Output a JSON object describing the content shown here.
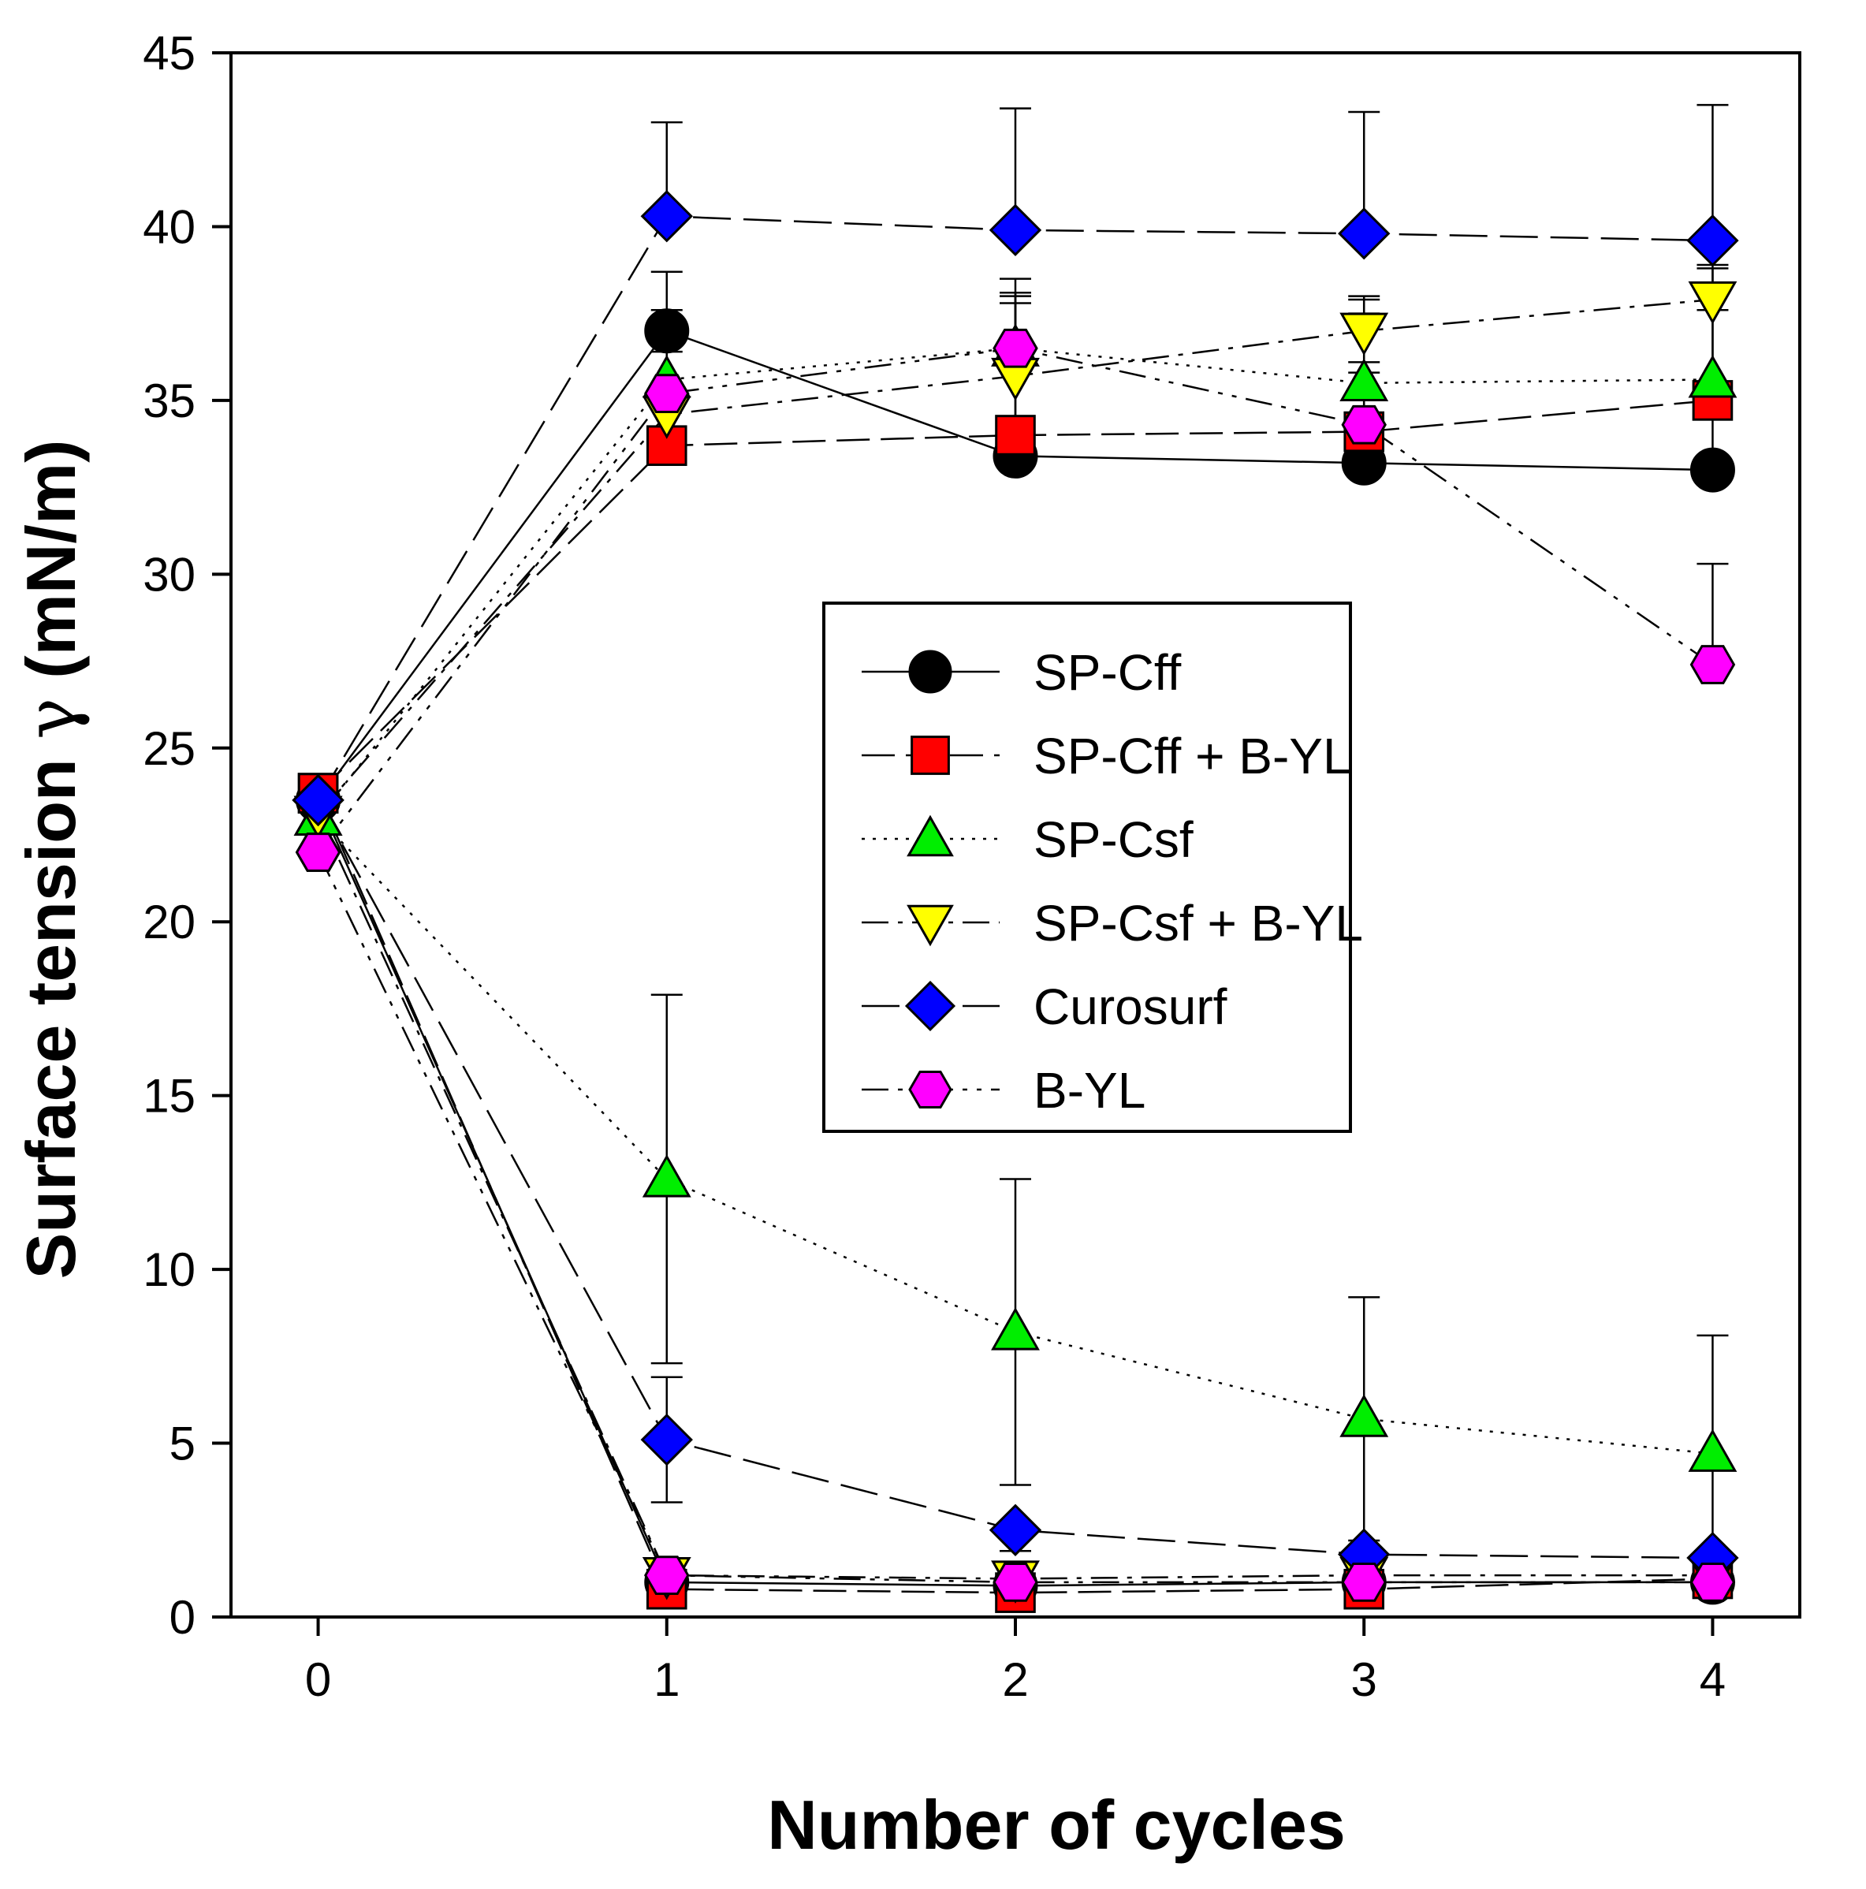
{
  "chart_data": {
    "type": "line",
    "title": "",
    "xlabel": "Number of cycles",
    "ylabel_main": "Surface tension ",
    "ylabel_symbol": "γ",
    "ylabel_unit": " (mN/m)",
    "xlim": [
      -0.25,
      4.25
    ],
    "ylim": [
      0,
      45
    ],
    "xticks": [
      0,
      1,
      2,
      3,
      4
    ],
    "yticks": [
      0,
      5,
      10,
      15,
      20,
      25,
      30,
      35,
      40,
      45
    ],
    "x": [
      0,
      1,
      2,
      3,
      4
    ],
    "legend_position": "center-right",
    "series": [
      {
        "name": "SP-Cff",
        "marker": "circle",
        "color": "#000000",
        "dash": "solid",
        "max": [
          23.5,
          37.0,
          33.4,
          33.2,
          33.0
        ],
        "max_err": [
          0.4,
          1.7,
          3.2,
          2.9,
          1.8
        ],
        "min": [
          23.5,
          1.0,
          0.9,
          1.0,
          1.0
        ],
        "min_err": [
          0.4,
          0.3,
          0.3,
          0.3,
          0.3
        ]
      },
      {
        "name": "SP-Cff + B-YL",
        "marker": "square",
        "color": "#ff0000",
        "dash": "longdash",
        "max": [
          23.7,
          33.7,
          34.0,
          34.1,
          35.0
        ],
        "max_err": [
          0.4,
          1.6,
          3.8,
          3.8,
          3.8
        ],
        "min": [
          23.7,
          0.8,
          0.7,
          0.8,
          1.1
        ],
        "min_err": [
          0.4,
          0.2,
          0.2,
          0.2,
          0.2
        ]
      },
      {
        "name": "SP-Csf",
        "marker": "triangle-up",
        "color": "#00ee00",
        "dash": "dot",
        "max": [
          23.0,
          35.6,
          36.5,
          35.5,
          35.6
        ],
        "max_err": [
          0.4,
          2.0,
          2.0,
          2.0,
          2.0
        ],
        "min": [
          23.0,
          12.6,
          8.2,
          5.7,
          4.7
        ],
        "min_err": [
          0.4,
          5.3,
          4.4,
          3.5,
          3.4
        ]
      },
      {
        "name": "SP-Csf + B-YL",
        "marker": "triangle-down",
        "color": "#ffff00",
        "dash": "dashdot",
        "max": [
          23.1,
          34.6,
          35.7,
          37.0,
          37.9
        ],
        "max_err": [
          0.4,
          1.8,
          2.4,
          1.0,
          1.0
        ],
        "min": [
          23.1,
          1.2,
          1.1,
          1.2,
          1.2
        ],
        "min_err": [
          0.4,
          0.3,
          0.3,
          0.3,
          0.3
        ]
      },
      {
        "name": "Curosurf",
        "marker": "diamond",
        "color": "#0000ff",
        "dash": "dash",
        "max": [
          23.5,
          40.3,
          39.9,
          39.8,
          39.6
        ],
        "max_err": [
          0.4,
          2.7,
          3.5,
          3.5,
          3.9
        ],
        "min": [
          23.5,
          5.1,
          2.5,
          1.8,
          1.7
        ],
        "min_err": [
          0.4,
          1.8,
          0.6,
          0.3,
          0.3
        ]
      },
      {
        "name": "B-YL",
        "marker": "hexagon",
        "color": "#ff00ff",
        "dash": "dashdotdot",
        "max": [
          22.0,
          35.2,
          36.5,
          34.3,
          27.4
        ],
        "max_err": [
          0.4,
          1.5,
          1.5,
          1.5,
          2.9
        ],
        "min": [
          22.0,
          1.2,
          1.0,
          1.0,
          1.0
        ],
        "min_err": [
          0.4,
          0.3,
          0.3,
          0.3,
          0.3
        ]
      }
    ]
  }
}
